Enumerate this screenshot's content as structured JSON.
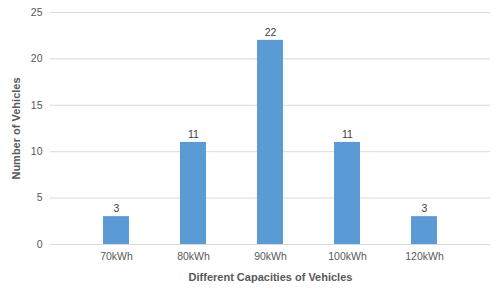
{
  "chart_data": {
    "type": "bar",
    "categories": [
      "70kWh",
      "80kWh",
      "90kWh",
      "100kWh",
      "120kWh"
    ],
    "values": [
      3,
      11,
      22,
      11,
      3
    ],
    "color": "#5b9bd5",
    "x_label": "Different Capacities of Vehicles",
    "y_label": "Number of Vehicles",
    "ylim": [
      0,
      25
    ],
    "yticks": [
      0,
      5,
      10,
      15,
      20,
      25
    ],
    "grid": true,
    "data_labels": true
  }
}
